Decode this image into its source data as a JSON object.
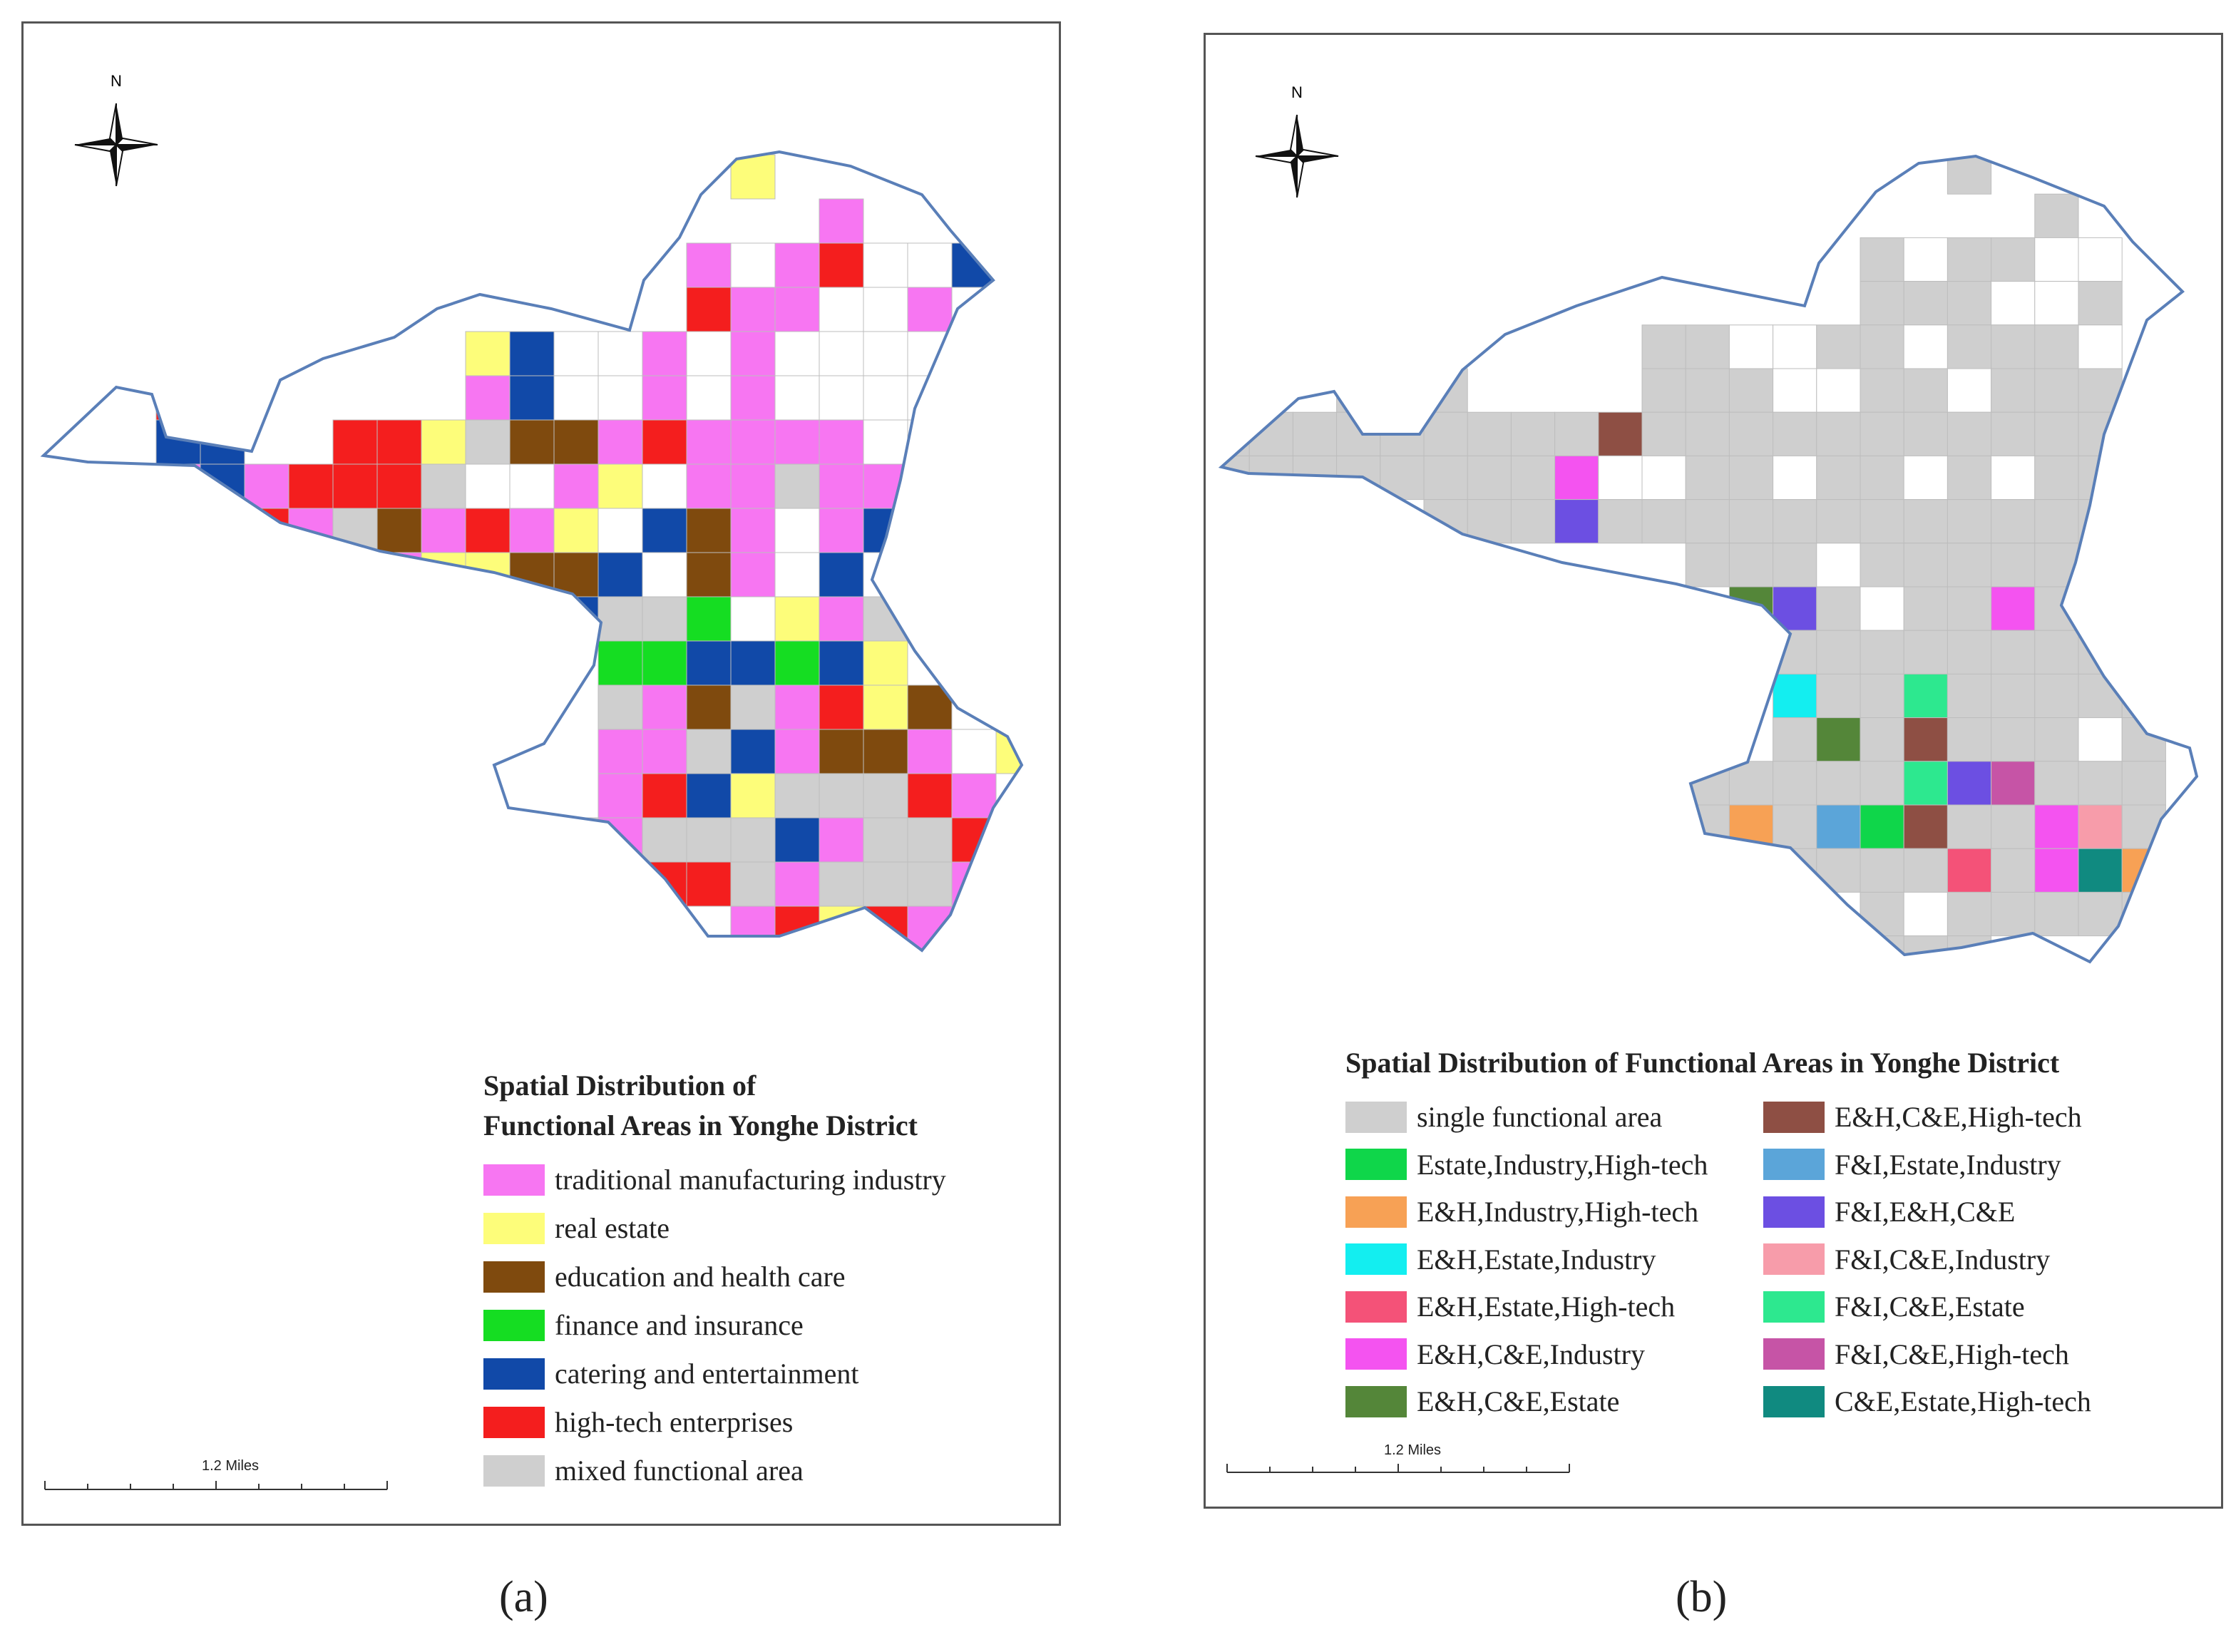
{
  "panel_a": {
    "north_label": "N",
    "legend_title_line1": "Spatial Distribution of",
    "legend_title_line2": "Functional Areas in Yonghe District",
    "legend": [
      {
        "label": "traditional manufacturing industry",
        "color": "#f776f2"
      },
      {
        "label": "real estate",
        "color": "#fdfd7a"
      },
      {
        "label": "education and health care",
        "color": "#7f4a0e"
      },
      {
        "label": "finance and insurance",
        "color": "#15dd22"
      },
      {
        "label": "catering and entertainment",
        "color": "#1149a8"
      },
      {
        "label": "high-tech enterprises",
        "color": "#f41e1e"
      },
      {
        "label": "mixed functional area",
        "color": "#cfcfcf"
      }
    ],
    "scale_label": "1.2 Miles",
    "panel_label": "(a)"
  },
  "panel_b": {
    "north_label": "N",
    "legend_title": "Spatial Distribution of Functional Areas in Yonghe District",
    "legend_left": [
      {
        "label": "single functional area",
        "color": "#cfcfcf"
      },
      {
        "label": "Estate,Industry,High-tech",
        "color": "#0fd64a"
      },
      {
        "label": "E&H,Industry,High-tech",
        "color": "#f7a155"
      },
      {
        "label": "E&H,Estate,Industry",
        "color": "#13eef0"
      },
      {
        "label": "E&H,Estate,High-tech",
        "color": "#f45278"
      },
      {
        "label": "E&H,C&E,Industry",
        "color": "#f453f0"
      },
      {
        "label": "E&H,C&E,Estate",
        "color": "#548639"
      }
    ],
    "legend_right": [
      {
        "label": "E&H,C&E,High-tech",
        "color": "#8e4f44"
      },
      {
        "label": "F&I,Estate,Industry",
        "color": "#5ba5d9"
      },
      {
        "label": "F&I,E&H,C&E",
        "color": "#6c4fe2"
      },
      {
        "label": "F&I,C&E,Industry",
        "color": "#f79caa"
      },
      {
        "label": "F&I,C&E,Estate",
        "color": "#2de88f"
      },
      {
        "label": "F&I,C&E,High-tech",
        "color": "#c654a6"
      },
      {
        "label": "C&E,Estate,High-tech",
        "color": "#108a80"
      }
    ],
    "scale_label": "1.2 Miles",
    "panel_label": "(b)"
  }
}
